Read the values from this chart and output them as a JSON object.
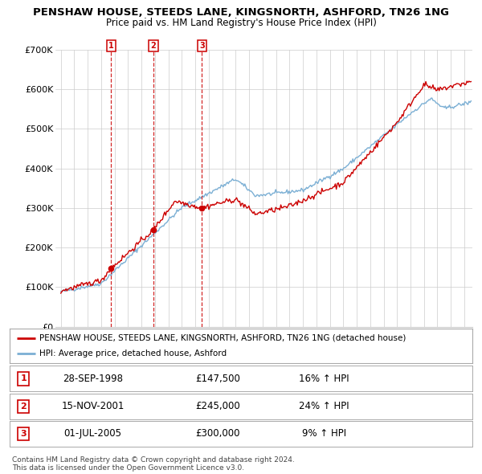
{
  "title": "PENSHAW HOUSE, STEEDS LANE, KINGSNORTH, ASHFORD, TN26 1NG",
  "subtitle": "Price paid vs. HM Land Registry's House Price Index (HPI)",
  "ylim": [
    0,
    700000
  ],
  "yticks": [
    0,
    100000,
    200000,
    300000,
    400000,
    500000,
    600000,
    700000
  ],
  "ytick_labels": [
    "£0",
    "£100K",
    "£200K",
    "£300K",
    "£400K",
    "£500K",
    "£600K",
    "£700K"
  ],
  "xlim_start": 1994.6,
  "xlim_end": 2025.6,
  "purchases": [
    {
      "index": 1,
      "date": "28-SEP-1998",
      "year": 1998.75,
      "price": 147500,
      "pct": "16%",
      "label": "1"
    },
    {
      "index": 2,
      "date": "15-NOV-2001",
      "year": 2001.88,
      "price": 245000,
      "pct": "24%",
      "label": "2"
    },
    {
      "index": 3,
      "date": "01-JUL-2005",
      "year": 2005.5,
      "price": 300000,
      "pct": "9%",
      "label": "3"
    }
  ],
  "legend_line1": "PENSHAW HOUSE, STEEDS LANE, KINGSNORTH, ASHFORD, TN26 1NG (detached house)",
  "legend_line2": "HPI: Average price, detached house, Ashford",
  "footer": "Contains HM Land Registry data © Crown copyright and database right 2024.\nThis data is licensed under the Open Government Licence v3.0.",
  "line_color_red": "#cc0000",
  "line_color_blue": "#7bafd4",
  "background_color": "#ffffff",
  "grid_color": "#cccccc"
}
